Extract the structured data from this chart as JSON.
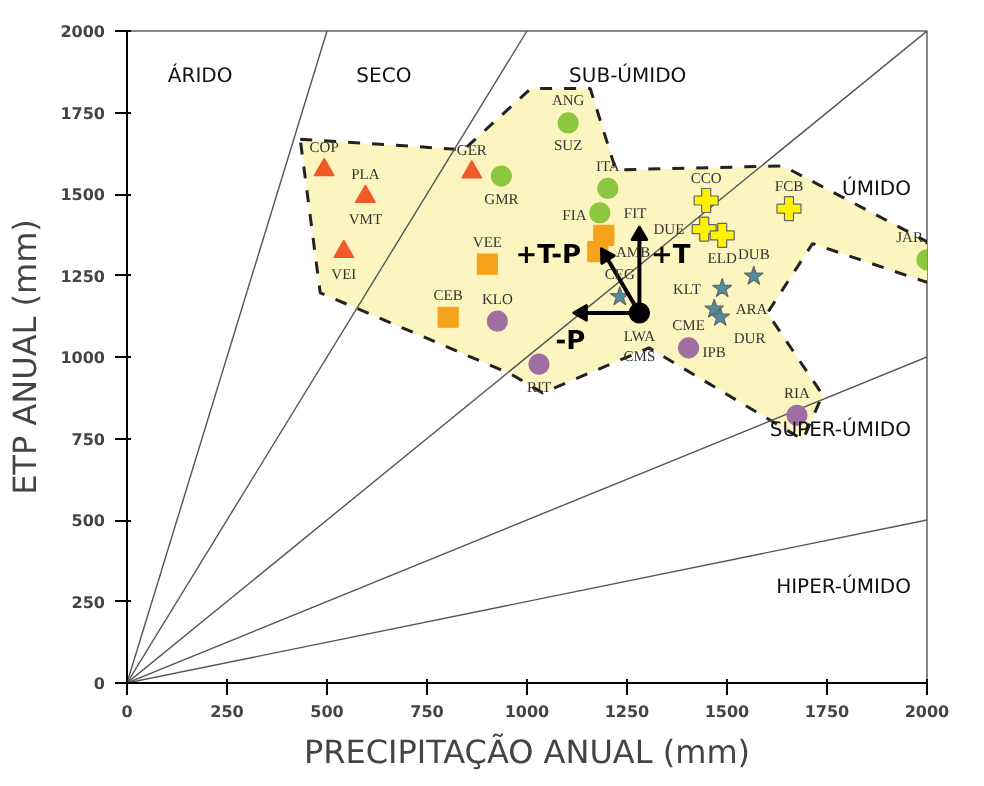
{
  "chart_data": {
    "type": "scatter",
    "xlabel": "PRECIPITAÇÃO ANUAL (mm)",
    "ylabel": "ETP ANUAL (mm)",
    "xlim": [
      0,
      2000
    ],
    "ylim": [
      0,
      2000
    ],
    "xticks": [
      0,
      250,
      500,
      750,
      1000,
      1250,
      1500,
      1750,
      2000
    ],
    "yticks": [
      0,
      250,
      500,
      750,
      1000,
      1250,
      1500,
      1750,
      2000
    ],
    "grid": false,
    "series": [
      {
        "type": "area",
        "color": "#fdf5c0",
        "line_style": "dashed",
        "x": [
          433,
          842,
          1010,
          1158,
          1222,
          1640,
          2000,
          2000,
          1714,
          1601,
          1739,
          1690,
          1305,
          1039,
          961,
          483,
          433
        ],
        "values": [
          1668,
          1636,
          1824,
          1824,
          1574,
          1586,
          1354,
          1229,
          1348,
          1135,
          884,
          746,
          1028,
          890,
          947,
          1197,
          1668
        ]
      },
      {
        "type": "line",
        "color": "#555555",
        "x": [
          0,
          500
        ],
        "values": [
          0,
          2000
        ]
      },
      {
        "type": "line",
        "color": "#555555",
        "x": [
          0,
          1000
        ],
        "values": [
          0,
          2000
        ]
      },
      {
        "type": "line",
        "color": "#555555",
        "x": [
          0,
          2000
        ],
        "values": [
          0,
          2000
        ]
      },
      {
        "type": "line",
        "color": "#555555",
        "x": [
          0,
          2000
        ],
        "values": [
          0,
          1000
        ]
      },
      {
        "type": "line",
        "color": "#555555",
        "x": [
          0,
          2000
        ],
        "values": [
          0,
          500
        ]
      },
      {
        "marker": "triangle",
        "color": "#f05a28",
        "x": [
          493,
          596,
          542,
          862
        ],
        "values": [
          1574,
          1492,
          1323,
          1567
        ]
      },
      {
        "marker": "circle",
        "color": "#8dc63f",
        "x": [
          1103,
          936,
          1202,
          1182,
          2000
        ],
        "values": [
          1718,
          1555,
          1517,
          1442,
          1298
        ]
      },
      {
        "marker": "square",
        "color": "#f7a21b",
        "x": [
          901,
          803,
          1192,
          1177
        ],
        "values": [
          1285,
          1122,
          1373,
          1323
        ]
      },
      {
        "marker": "circle",
        "color": "#9e6fa0",
        "x": [
          926,
          1030,
          1404,
          1675
        ],
        "values": [
          1110,
          978,
          1028,
          821
        ]
      },
      {
        "marker": "cross",
        "color": "#fff200",
        "x": [
          1448,
          1443,
          1488,
          1655
        ],
        "values": [
          1480,
          1392,
          1373,
          1455
        ]
      },
      {
        "marker": "star",
        "color": "#4d8fa0",
        "x": [
          1567,
          1488,
          1468,
          1483,
          1232
        ],
        "values": [
          1248,
          1210,
          1147,
          1122,
          1185
        ]
      },
      {
        "type": "line",
        "marker": "triangle",
        "color": "#000000",
        "x": [
          1281,
          1281
        ],
        "values": [
          1135,
          1373
        ]
      },
      {
        "type": "line",
        "marker": "triangle",
        "color": "#000000",
        "x": [
          1281,
          1197
        ],
        "values": [
          1135,
          1310
        ]
      },
      {
        "type": "line",
        "marker": "triangle",
        "color": "#000000",
        "x": [
          1281,
          1138
        ],
        "values": [
          1135,
          1135
        ]
      },
      {
        "marker": "circle",
        "color": "#000000",
        "x": [
          1281
        ],
        "values": [
          1135
        ]
      }
    ],
    "annotations": [
      "ÁRIDO",
      "SECO",
      "SUB-ÚMIDO",
      "ÚMIDO",
      "SUPER-ÚMIDO",
      "HIPER-ÚMIDO",
      {
        "text": "COP",
        "x": 493,
        "y": 1574
      },
      {
        "text": "PLA",
        "x": 596,
        "y": 1492
      },
      {
        "text": "VMT",
        "x": 596,
        "y": 1492
      },
      {
        "text": "VEI",
        "x": 542,
        "y": 1323
      },
      {
        "text": "GER",
        "x": 862,
        "y": 1567
      },
      {
        "text": "ANG",
        "x": 1103,
        "y": 1718
      },
      {
        "text": "SUZ",
        "x": 1103,
        "y": 1718
      },
      {
        "text": "GMR",
        "x": 936,
        "y": 1555
      },
      {
        "text": "ITA",
        "x": 1202,
        "y": 1517
      },
      {
        "text": "FIT",
        "x": 1182,
        "y": 1442
      },
      {
        "text": "JAR",
        "x": 2000,
        "y": 1298
      },
      {
        "text": "VEE",
        "x": 901,
        "y": 1285
      },
      {
        "text": "CEB",
        "x": 803,
        "y": 1122
      },
      {
        "text": "FIA",
        "x": 1192,
        "y": 1373
      },
      {
        "text": "AMB",
        "x": 1177,
        "y": 1323
      },
      {
        "text": "KLO",
        "x": 926,
        "y": 1110
      },
      {
        "text": "RIT",
        "x": 1030,
        "y": 978
      },
      {
        "text": "CME",
        "x": 1404,
        "y": 1028
      },
      {
        "text": "RIA",
        "x": 1675,
        "y": 821
      },
      {
        "text": "CCO",
        "x": 1448,
        "y": 1480
      },
      {
        "text": "DUE",
        "x": 1443,
        "y": 1392
      },
      {
        "text": "ELD",
        "x": 1488,
        "y": 1373
      },
      {
        "text": "FCB",
        "x": 1655,
        "y": 1455
      },
      {
        "text": "DUB",
        "x": 1567,
        "y": 1248
      },
      {
        "text": "KLT",
        "x": 1488,
        "y": 1210
      },
      {
        "text": "ARA",
        "x": 1488,
        "y": 1210
      },
      {
        "text": "IPB",
        "x": 1468,
        "y": 1147
      },
      {
        "text": "DUR",
        "x": 1483,
        "y": 1122
      },
      {
        "text": "CEG",
        "x": 1232,
        "y": 1185
      },
      {
        "text": "LWA",
        "x": 1281,
        "y": 1135
      },
      {
        "text": "CMS",
        "x": 1281,
        "y": 1135
      },
      {
        "text": "+T",
        "x": 1281,
        "y": 1373
      },
      {
        "text": "+T-P",
        "x": 1197,
        "y": 1310
      },
      {
        "text": "-P",
        "x": 1138,
        "y": 1135
      }
    ]
  }
}
